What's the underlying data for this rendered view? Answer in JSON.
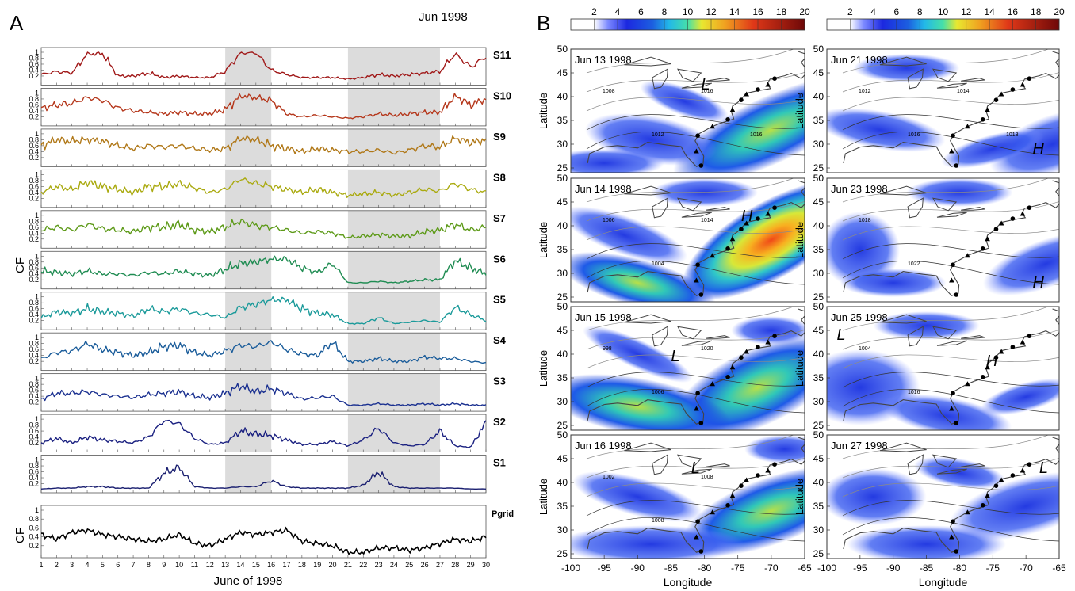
{
  "panel_a": {
    "letter": "A",
    "header": "Jun 1998",
    "y_label": "CF",
    "x_title": "June of 1998",
    "y_ticks": [
      "0.2",
      "0.4",
      "0.6",
      "0.8",
      "1"
    ],
    "x_ticks": [
      "1",
      "2",
      "3",
      "4",
      "5",
      "6",
      "7",
      "8",
      "9",
      "10",
      "11",
      "12",
      "13",
      "14",
      "15",
      "16",
      "17",
      "18",
      "19",
      "20",
      "21",
      "22",
      "23",
      "24",
      "25",
      "26",
      "27",
      "28",
      "29",
      "30"
    ],
    "shaded_days": [
      [
        13,
        16
      ],
      [
        21,
        27
      ]
    ]
  },
  "panel_b": {
    "letter": "B",
    "colorbar_ticks": [
      "2",
      "4",
      "6",
      "8",
      "10",
      "12",
      "14",
      "16",
      "18",
      "20"
    ],
    "x_ticks": [
      "-100",
      "-95",
      "-90",
      "-85",
      "-80",
      "-75",
      "-70",
      "-65"
    ],
    "y_ticks": [
      "25",
      "30",
      "35",
      "40",
      "45",
      "50"
    ],
    "x_label": "Longitude",
    "y_label": "Latitude",
    "maps": [
      {
        "date": "Jun 13 1998",
        "marks": [
          {
            "t": "L",
            "x": -80.5,
            "y": 41.5
          }
        ],
        "contours": [
          "1008",
          "1012",
          "1016",
          "1016"
        ]
      },
      {
        "date": "Jun 14 1998",
        "marks": [
          {
            "t": "H",
            "x": -74.5,
            "y": 41
          }
        ],
        "contours": [
          "1006",
          "1004",
          "1014"
        ]
      },
      {
        "date": "Jun 15 1998",
        "marks": [
          {
            "t": "L",
            "x": -85,
            "y": 38.5
          }
        ],
        "contours": [
          "998",
          "1006",
          "1020"
        ]
      },
      {
        "date": "Jun 16 1998",
        "marks": [
          {
            "t": "L",
            "x": -82,
            "y": 42
          }
        ],
        "contours": [
          "1002",
          "1008",
          "1008"
        ]
      },
      {
        "date": "Jun 21 1998",
        "marks": [
          {
            "t": "H",
            "x": -69,
            "y": 28
          }
        ],
        "contours": [
          "1012",
          "1016",
          "1014",
          "1018"
        ]
      },
      {
        "date": "Jun 23 1998",
        "marks": [
          {
            "t": "H",
            "x": -69,
            "y": 27
          }
        ],
        "contours": [
          "1018",
          "1022"
        ]
      },
      {
        "date": "Jun 25 1998",
        "marks": [
          {
            "t": "L",
            "x": -98.5,
            "y": 43
          },
          {
            "t": "H",
            "x": -76,
            "y": 37.5
          }
        ],
        "contours": [
          "1004",
          "1016"
        ]
      },
      {
        "date": "Jun 27 1998",
        "marks": [
          {
            "t": "L",
            "x": -68,
            "y": 42
          }
        ],
        "contours": []
      }
    ]
  },
  "chart_data": [
    {
      "type": "line",
      "x_range": [
        1,
        30
      ],
      "ylim": [
        0,
        1
      ],
      "series": [
        {
          "name": "S11",
          "color": "#a01818",
          "values": [
            0.25,
            0.35,
            0.3,
            0.95,
            0.95,
            0.2,
            0.2,
            0.3,
            0.15,
            0.2,
            0.15,
            0.15,
            0.35,
            0.98,
            0.98,
            0.4,
            0.25,
            0.15,
            0.15,
            0.15,
            0.1,
            0.15,
            0.25,
            0.2,
            0.25,
            0.3,
            0.35,
            0.95,
            0.5,
            0.85
          ]
        },
        {
          "name": "S10",
          "color": "#b5371b",
          "values": [
            0.5,
            0.6,
            0.65,
            0.85,
            0.75,
            0.5,
            0.4,
            0.35,
            0.3,
            0.35,
            0.3,
            0.3,
            0.45,
            0.9,
            0.85,
            0.75,
            0.3,
            0.2,
            0.25,
            0.2,
            0.15,
            0.2,
            0.3,
            0.25,
            0.3,
            0.35,
            0.35,
            0.9,
            0.6,
            0.8
          ]
        },
        {
          "name": "S9",
          "color": "#b07818",
          "values": [
            0.6,
            0.8,
            0.75,
            0.8,
            0.75,
            0.6,
            0.5,
            0.6,
            0.55,
            0.6,
            0.5,
            0.45,
            0.5,
            0.85,
            0.8,
            0.6,
            0.5,
            0.4,
            0.5,
            0.45,
            0.4,
            0.4,
            0.45,
            0.35,
            0.45,
            0.6,
            0.55,
            0.85,
            0.7,
            0.8
          ]
        },
        {
          "name": "S8",
          "color": "#aaaa10",
          "values": [
            0.4,
            0.6,
            0.5,
            0.75,
            0.6,
            0.5,
            0.4,
            0.6,
            0.6,
            0.7,
            0.55,
            0.4,
            0.5,
            0.85,
            0.7,
            0.6,
            0.5,
            0.4,
            0.5,
            0.4,
            0.3,
            0.35,
            0.4,
            0.3,
            0.4,
            0.5,
            0.45,
            0.7,
            0.5,
            0.4
          ]
        },
        {
          "name": "S7",
          "color": "#5d9a18",
          "values": [
            0.5,
            0.6,
            0.5,
            0.7,
            0.55,
            0.5,
            0.45,
            0.6,
            0.6,
            0.7,
            0.5,
            0.45,
            0.6,
            0.8,
            0.65,
            0.6,
            0.5,
            0.4,
            0.45,
            0.4,
            0.25,
            0.3,
            0.35,
            0.3,
            0.3,
            0.45,
            0.5,
            0.7,
            0.5,
            0.6
          ]
        },
        {
          "name": "S6",
          "color": "#1f8c52",
          "values": [
            0.5,
            0.45,
            0.4,
            0.5,
            0.4,
            0.4,
            0.35,
            0.45,
            0.4,
            0.5,
            0.4,
            0.35,
            0.55,
            0.75,
            0.8,
            0.9,
            0.9,
            0.6,
            0.45,
            0.75,
            0.1,
            0.1,
            0.15,
            0.1,
            0.15,
            0.2,
            0.2,
            0.85,
            0.6,
            0.4
          ]
        },
        {
          "name": "S5",
          "color": "#1a9a9a",
          "values": [
            0.3,
            0.5,
            0.45,
            0.6,
            0.5,
            0.45,
            0.35,
            0.6,
            0.5,
            0.6,
            0.45,
            0.4,
            0.3,
            0.65,
            0.75,
            0.9,
            0.9,
            0.6,
            0.45,
            0.4,
            0.1,
            0.1,
            0.3,
            0.1,
            0.15,
            0.2,
            0.15,
            0.65,
            0.4,
            0.2
          ]
        },
        {
          "name": "S4",
          "color": "#1a5c9a",
          "values": [
            0.3,
            0.5,
            0.55,
            0.8,
            0.6,
            0.5,
            0.4,
            0.5,
            0.7,
            0.75,
            0.5,
            0.4,
            0.55,
            0.75,
            0.7,
            0.85,
            0.6,
            0.45,
            0.4,
            0.85,
            0.2,
            0.2,
            0.3,
            0.2,
            0.2,
            0.35,
            0.3,
            0.3,
            0.2,
            0.15
          ]
        },
        {
          "name": "S3",
          "color": "#1a3090",
          "values": [
            0.3,
            0.5,
            0.5,
            0.55,
            0.45,
            0.4,
            0.35,
            0.45,
            0.5,
            0.55,
            0.4,
            0.35,
            0.5,
            0.75,
            0.55,
            0.65,
            0.5,
            0.3,
            0.35,
            0.4,
            0.1,
            0.1,
            0.15,
            0.1,
            0.1,
            0.15,
            0.1,
            0.15,
            0.1,
            0.1
          ]
        },
        {
          "name": "S2",
          "color": "#1a2080",
          "values": [
            0.2,
            0.35,
            0.2,
            0.4,
            0.3,
            0.25,
            0.2,
            0.4,
            0.95,
            0.85,
            0.35,
            0.15,
            0.2,
            0.6,
            0.5,
            0.45,
            0.3,
            0.15,
            0.15,
            0.25,
            0.1,
            0.3,
            0.7,
            0.2,
            0.1,
            0.15,
            0.6,
            0.1,
            0.05,
            0.9
          ]
        },
        {
          "name": "S1",
          "color": "#1a1f70",
          "values": [
            0.02,
            0.05,
            0.05,
            0.1,
            0.1,
            0.05,
            0.05,
            0.05,
            0.55,
            0.75,
            0.1,
            0.05,
            0.05,
            0.1,
            0.1,
            0.3,
            0.1,
            0.05,
            0.05,
            0.05,
            0.05,
            0.15,
            0.6,
            0.1,
            0.05,
            0.05,
            0.05,
            0.05,
            0.02,
            0.02
          ]
        }
      ]
    },
    {
      "type": "line",
      "x_range": [
        1,
        30
      ],
      "ylim": [
        0,
        1
      ],
      "series": [
        {
          "name": "Pgrid",
          "color": "#000000",
          "values": [
            0.45,
            0.35,
            0.5,
            0.55,
            0.45,
            0.4,
            0.35,
            0.3,
            0.35,
            0.45,
            0.25,
            0.2,
            0.35,
            0.5,
            0.45,
            0.5,
            0.55,
            0.3,
            0.25,
            0.2,
            0.05,
            0.05,
            0.15,
            0.15,
            0.1,
            0.15,
            0.25,
            0.35,
            0.3,
            0.4
          ]
        }
      ]
    }
  ]
}
